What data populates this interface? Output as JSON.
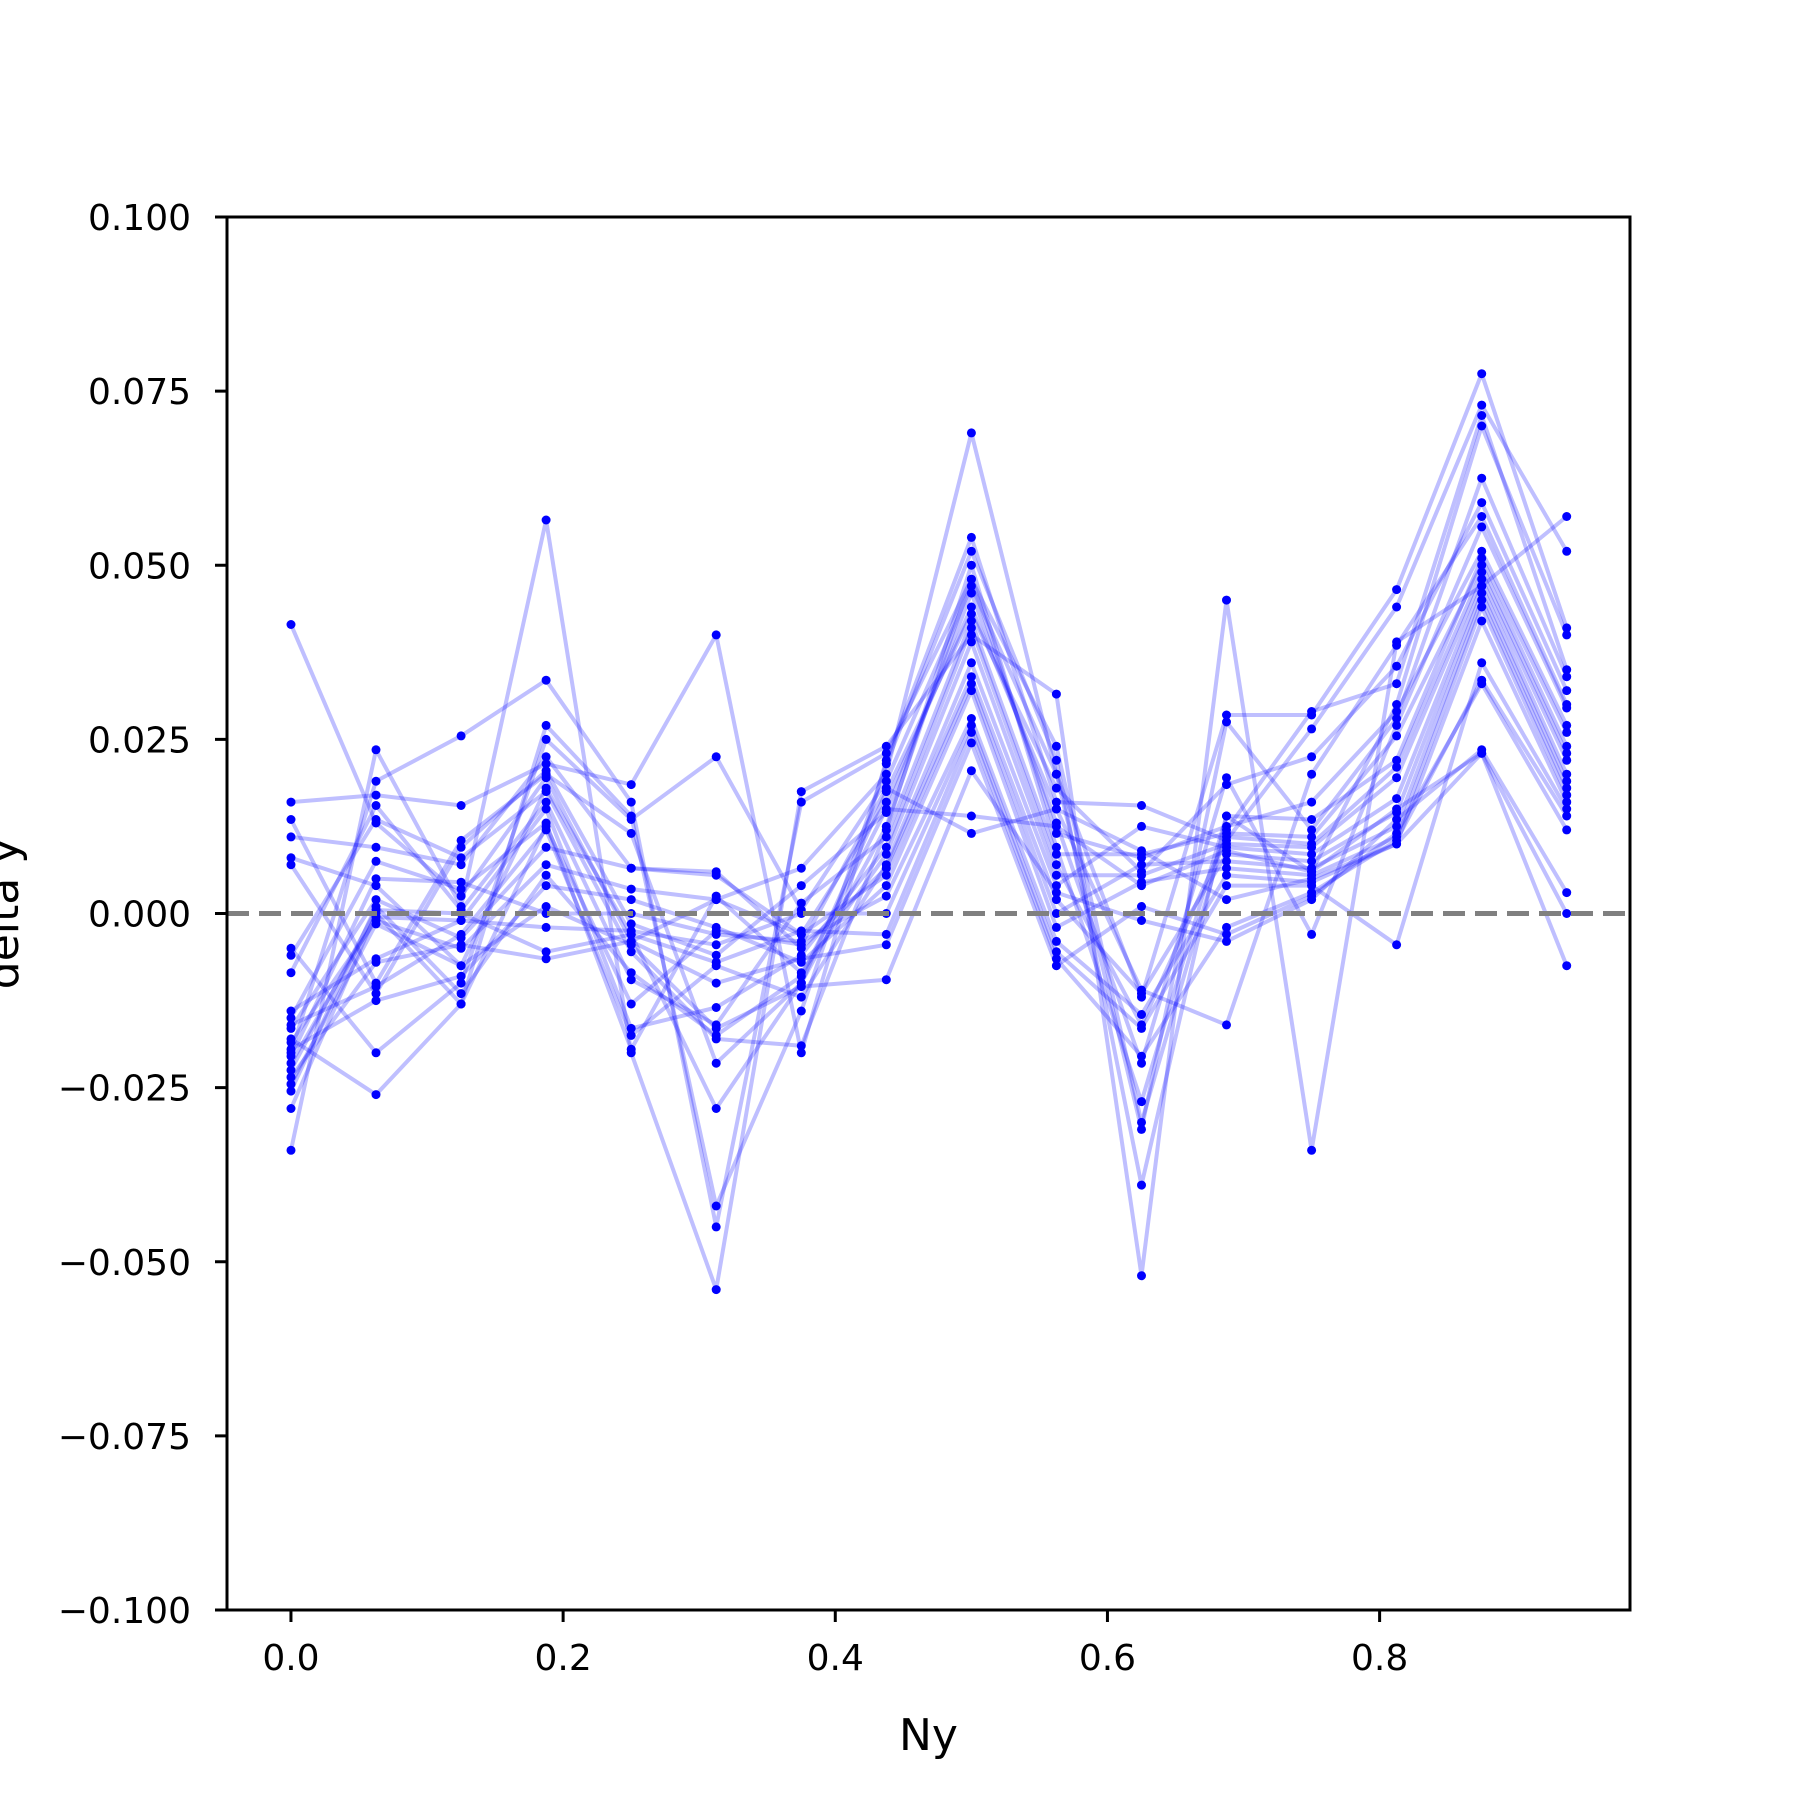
{
  "chart_data": {
    "type": "line",
    "title": "",
    "xlabel": "Ny",
    "ylabel": "delta y",
    "xlim": [
      -0.047,
      0.984
    ],
    "ylim": [
      -0.1,
      0.1
    ],
    "grid": false,
    "legend": "none",
    "x_ticks": [
      0.0,
      0.2,
      0.4,
      0.6,
      0.8
    ],
    "x_tick_labels": [
      "0.0",
      "0.2",
      "0.4",
      "0.6",
      "0.8"
    ],
    "y_ticks": [
      0.1,
      0.075,
      0.05,
      0.025,
      0.0,
      -0.025,
      -0.05,
      -0.075,
      -0.1
    ],
    "y_tick_labels": [
      "0.100",
      "0.075",
      "0.050",
      "0.025",
      "0.000",
      "−0.025",
      "−0.050",
      "−0.075",
      "−0.100"
    ],
    "reference_line": {
      "y": 0.0,
      "style": "dashed",
      "color": "#808080"
    },
    "line_color": "#0000ff",
    "line_alpha": 0.25,
    "marker_color": "#0000ff",
    "x": [
      0.0,
      0.0625,
      0.125,
      0.1875,
      0.25,
      0.3125,
      0.375,
      0.4375,
      0.5,
      0.5625,
      0.625,
      0.6875,
      0.75,
      0.8125,
      0.875,
      0.9375
    ],
    "series": [
      {
        "values": [
          0.0415,
          0.013,
          0.0025,
          0.0195,
          -0.004,
          0.002,
          0.0065,
          0.02,
          0.069,
          0.02,
          -0.012,
          0.0285,
          0.0285,
          0.0465,
          0.0775,
          0.041
        ]
      },
      {
        "values": [
          -0.034,
          0.0235,
          0.001,
          0.0565,
          -0.02,
          -0.054,
          0.0175,
          0.024,
          0.04,
          0.0315,
          -0.052,
          0.045,
          -0.034,
          0.039,
          0.047,
          0.057
        ]
      },
      {
        "values": [
          0.016,
          0.017,
          0.0155,
          0.0215,
          0.0185,
          0.04,
          -0.02,
          0.022,
          0.054,
          0.016,
          0.0155,
          0.0105,
          0.0265,
          0.044,
          0.073,
          0.052
        ]
      },
      {
        "values": [
          -0.02,
          0.019,
          0.0255,
          0.0335,
          0.016,
          -0.045,
          0.016,
          0.023,
          0.048,
          0.024,
          -0.03,
          0.012,
          0.029,
          0.033,
          0.0715,
          0.035
        ]
      },
      {
        "values": [
          -0.018,
          -0.026,
          -0.013,
          0.027,
          0.014,
          -0.042,
          -0.014,
          0.0215,
          0.052,
          0.022,
          -0.039,
          0.014,
          0.006,
          0.03,
          0.07,
          0.04
        ]
      },
      {
        "values": [
          -0.005,
          -0.02,
          -0.01,
          0.025,
          0.0135,
          0.0225,
          0.0005,
          0.019,
          0.047,
          0.02,
          -0.031,
          0.0275,
          0.012,
          0.028,
          0.0625,
          0.034
        ]
      },
      {
        "values": [
          0.0135,
          -0.01,
          0.0105,
          0.02,
          0.0115,
          -0.0215,
          -0.01,
          0.0175,
          0.043,
          0.018,
          0.006,
          0.0185,
          0.0225,
          0.0355,
          0.059,
          0.032
        ]
      },
      {
        "values": [
          0.011,
          0.0095,
          0.007,
          0.0225,
          0.0065,
          0.0055,
          -0.003,
          0.016,
          0.044,
          0.015,
          -0.011,
          -0.016,
          0.02,
          0.0385,
          0.057,
          0.03
        ]
      },
      {
        "values": [
          0.007,
          -0.0115,
          0.0095,
          0.0205,
          -0.0015,
          -0.006,
          0.004,
          0.0145,
          0.046,
          0.013,
          -0.0215,
          0.0195,
          -0.003,
          0.027,
          0.0555,
          0.0295
        ]
      },
      {
        "values": [
          0.008,
          0.004,
          -0.0075,
          0.018,
          -0.003,
          -0.028,
          -0.01,
          0.0125,
          0.048,
          0.0115,
          0.008,
          0.0125,
          0.016,
          0.029,
          0.052,
          0.027
        ]
      },
      {
        "values": [
          -0.006,
          0.0135,
          0.008,
          0.0175,
          -0.0055,
          -0.018,
          -0.019,
          0.012,
          0.05,
          0.0095,
          -0.027,
          0.014,
          0.0135,
          0.022,
          0.051,
          0.026
        ]
      },
      {
        "values": [
          -0.0085,
          0.0155,
          0.0005,
          0.016,
          -0.0095,
          -0.016,
          0.0015,
          0.011,
          0.042,
          0.0085,
          0.0085,
          0.0115,
          0.011,
          0.0255,
          0.05,
          0.024
        ]
      },
      {
        "values": [
          -0.014,
          -0.0065,
          -0.001,
          0.015,
          -0.0165,
          -0.0135,
          -0.006,
          0.0095,
          0.041,
          0.007,
          -0.016,
          0.011,
          0.01,
          0.021,
          0.049,
          0.023
        ]
      },
      {
        "values": [
          -0.015,
          0.0075,
          0.0035,
          0.013,
          -0.0195,
          0.0025,
          -0.0085,
          0.0085,
          0.039,
          0.0055,
          0.0055,
          0.01,
          0.0095,
          0.0195,
          0.048,
          0.022
        ]
      },
      {
        "values": [
          -0.016,
          -0.0105,
          -0.003,
          0.012,
          -0.0175,
          -0.0075,
          -0.012,
          0.007,
          0.036,
          0.004,
          0.0125,
          0.0095,
          0.0085,
          0.0165,
          0.047,
          0.02
        ]
      },
      {
        "values": [
          -0.0165,
          0.002,
          -0.0035,
          0.0095,
          0.0065,
          0.006,
          -0.005,
          0.0065,
          0.034,
          0.002,
          -0.0115,
          0.0085,
          0.0075,
          0.0145,
          0.046,
          0.019
        ]
      },
      {
        "values": [
          -0.0185,
          -0.001,
          -0.005,
          0.007,
          0.0035,
          0.002,
          -0.003,
          0.0055,
          0.033,
          0.0,
          0.007,
          0.0075,
          0.0065,
          0.0125,
          0.045,
          0.018
        ]
      },
      {
        "values": [
          -0.0195,
          -0.0125,
          -0.009,
          0.004,
          0.002,
          -0.002,
          -0.007,
          0.004,
          0.032,
          -0.002,
          0.0045,
          0.0065,
          0.0055,
          0.011,
          0.044,
          0.017
        ]
      },
      {
        "values": [
          -0.0205,
          0.005,
          0.0045,
          0.0,
          0.0,
          -0.003,
          -0.004,
          0.0025,
          0.028,
          -0.004,
          -0.0145,
          0.0055,
          0.0045,
          0.01,
          0.042,
          0.016
        ]
      },
      {
        "values": [
          -0.0215,
          -0.0005,
          -0.001,
          -0.002,
          -0.0025,
          -0.0045,
          0.0,
          0.0,
          0.027,
          -0.0055,
          -0.0165,
          0.004,
          0.004,
          -0.0045,
          0.036,
          0.015
        ]
      },
      {
        "values": [
          -0.0225,
          0.0005,
          0.0,
          -0.0055,
          -0.003,
          -0.007,
          -0.0025,
          -0.003,
          0.026,
          -0.0065,
          -0.0205,
          -0.002,
          0.003,
          0.0105,
          0.0335,
          0.014
        ]
      },
      {
        "values": [
          -0.0235,
          -0.007,
          -0.0045,
          -0.0065,
          -0.004,
          -0.01,
          -0.0065,
          -0.0045,
          0.0245,
          -0.0075,
          0.001,
          -0.003,
          0.0025,
          0.0115,
          0.033,
          0.012
        ]
      },
      {
        "values": [
          -0.0245,
          -0.0015,
          -0.0075,
          0.001,
          -0.0045,
          -0.0165,
          -0.0105,
          -0.0095,
          0.0205,
          0.003,
          -0.001,
          -0.004,
          0.002,
          0.0135,
          0.0235,
          0.003
        ]
      },
      {
        "values": [
          -0.0255,
          0.001,
          -0.0115,
          0.0055,
          -0.0085,
          -0.0175,
          -0.009,
          0.015,
          0.014,
          0.0125,
          0.004,
          0.009,
          0.006,
          0.015,
          0.023,
          0.0
        ]
      },
      {
        "values": [
          -0.028,
          0.0,
          -0.013,
          0.0125,
          -0.013,
          -0.0025,
          -0.0045,
          0.018,
          0.0115,
          0.015,
          0.009,
          0.002,
          0.005,
          0.01,
          0.023,
          -0.0075
        ]
      }
    ]
  }
}
